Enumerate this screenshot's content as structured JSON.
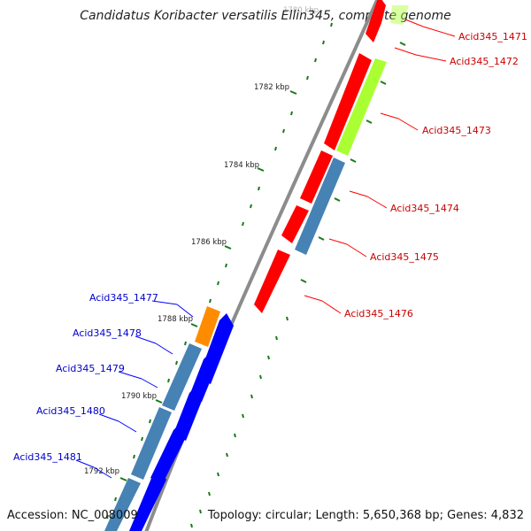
{
  "title": "Candidatus Koribacter versatilis Ellin345, complete genome",
  "footer": {
    "accession": "Accession: NC_008009",
    "summary": "Topology: circular; Length: 5,650,368 bp; Genes: 4,832"
  },
  "colors": {
    "red": "#ff0000",
    "green": "#aaff33",
    "steel": "#4682b4",
    "blue": "#0000ff",
    "orange": "#ff8c00",
    "forward_label": "#cc0000",
    "reverse_label": "#0000cc",
    "tick": "#1a7a1a",
    "backbone": "#8c8c8c"
  },
  "tick_labels": [
    {
      "text": "1780 kbp",
      "kbp": 1780
    },
    {
      "text": "1782 kbp",
      "kbp": 1782
    },
    {
      "text": "1784 kbp",
      "kbp": 1784
    },
    {
      "text": "1786 kbp",
      "kbp": 1786
    },
    {
      "text": "1788 kbp",
      "kbp": 1788
    },
    {
      "text": "1790 kbp",
      "kbp": 1790
    },
    {
      "text": "1792 kbp",
      "kbp": 1792
    }
  ],
  "gene_labels": {
    "forward": [
      "Acid345_1471",
      "Acid345_1472",
      "Acid345_1473",
      "Acid345_1474",
      "Acid345_1475",
      "Acid345_1476"
    ],
    "reverse": [
      "Acid345_1477",
      "Acid345_1478",
      "Acid345_1479",
      "Acid345_1480",
      "Acid345_1481"
    ]
  }
}
